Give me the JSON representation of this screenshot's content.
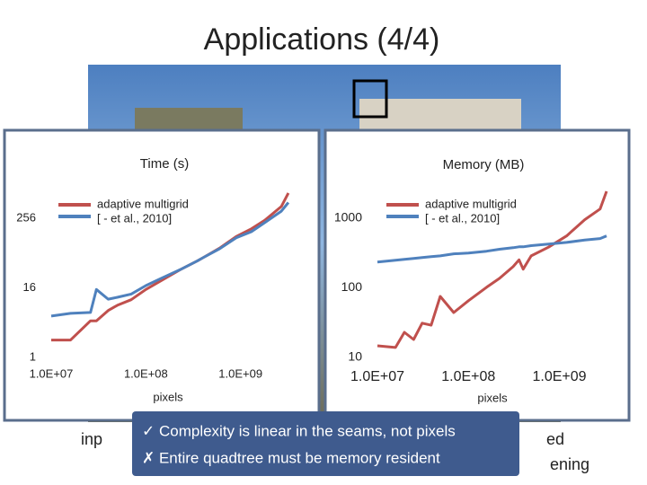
{
  "slide": {
    "title": "Applications (4/4)",
    "bullets": [
      "✓ Complexity is linear in the seams, not pixels",
      "✗ Entire quadtree must be memory resident"
    ],
    "hidden_text": [
      "inp",
      "ed",
      "ening"
    ]
  },
  "chart_data": [
    {
      "type": "line",
      "title": "Time (s)",
      "xlabel": "pixels",
      "xscale": "log",
      "yscale": "log",
      "grid": false,
      "x": [
        10000000,
        16000000,
        26000000,
        30000000,
        40000000,
        50000000,
        70000000,
        100000000,
        150000000,
        230000000,
        350000000,
        400000000,
        600000000,
        900000000,
        1300000000,
        1800000000,
        2700000000,
        3200000000
      ],
      "series": [
        {
          "name": "adaptive multigrid",
          "color": "#c0504d",
          "values": [
            2,
            2,
            4.3,
            4.3,
            6.5,
            8,
            10,
            15,
            22,
            33,
            47,
            53,
            78,
            124,
            168,
            236,
            410,
            700
          ]
        },
        {
          "name": "[ - et al., 2010]",
          "color": "#4f81bd",
          "values": [
            5.2,
            5.8,
            6,
            15,
            10.2,
            11,
            12.5,
            17.5,
            24,
            33,
            47,
            53,
            76,
            118,
            150,
            215,
            340,
            480
          ]
        }
      ],
      "xlim": [
        10000000,
        3500000000
      ],
      "xticks": [
        {
          "value": 10000000,
          "label": "1.0E+07"
        },
        {
          "value": 100000000,
          "label": "1.0E+08"
        },
        {
          "value": 1000000000,
          "label": "1.0E+09"
        }
      ],
      "ylim": [
        1,
        750
      ],
      "yticks": [
        1,
        16,
        256
      ]
    },
    {
      "type": "line",
      "title": "Memory (MB)",
      "xlabel": "pixels",
      "xscale": "log",
      "yscale": "log",
      "grid": false,
      "x": [
        10000000,
        15800000,
        19800000,
        25000000,
        31000000,
        39000000,
        49000000,
        69000000,
        100000000,
        158000000,
        220000000,
        310000000,
        360000000,
        400000000,
        490000000,
        760000000,
        1200000000,
        1900000000,
        2800000000,
        3300000000
      ],
      "series": [
        {
          "name": "adaptive multigrid",
          "color": "#c0504d",
          "values": [
            14.7,
            13.9,
            22.9,
            18.1,
            31,
            29,
            75,
            44,
            65,
            101,
            136,
            200,
            250,
            184,
            285,
            380,
            550,
            940,
            1340,
            2400
          ]
        },
        {
          "name": "[ - et al., 2010]",
          "color": "#4f81bd",
          "values": [
            233,
            247,
            254,
            262,
            270,
            278,
            285,
            305,
            313,
            333,
            355,
            373,
            385,
            385,
            400,
            420,
            445,
            480,
            505,
            550
          ]
        }
      ],
      "xlim": [
        10000000,
        3300000000
      ],
      "xticks": [
        {
          "value": 10000000,
          "label": "1.0E+07"
        },
        {
          "value": 100000000,
          "label": "1.0E+08"
        },
        {
          "value": 1000000000,
          "label": "1.0E+09"
        }
      ],
      "ylim": [
        10,
        2400
      ],
      "yticks": [
        10,
        100,
        1000
      ]
    }
  ]
}
